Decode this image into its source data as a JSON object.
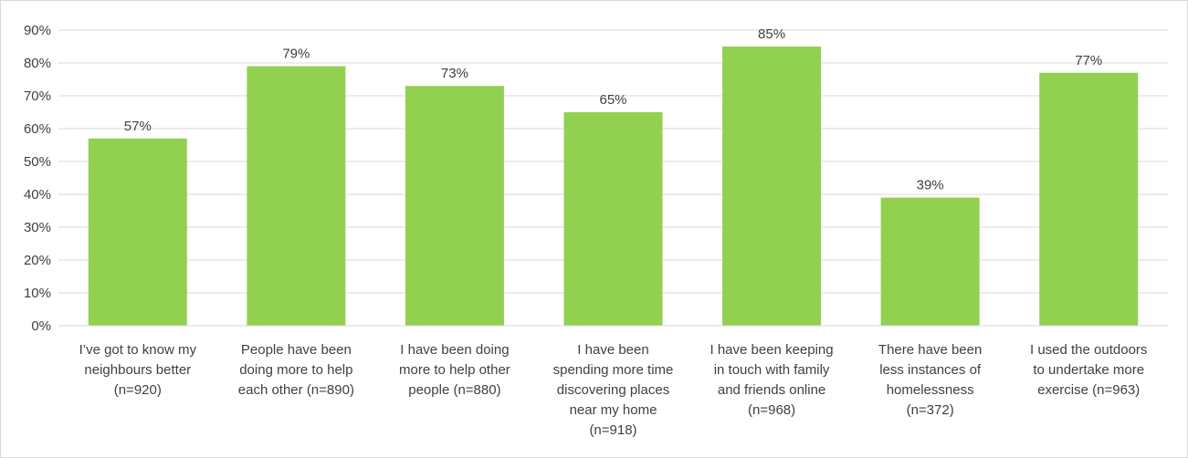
{
  "chart_data": {
    "type": "bar",
    "title": "",
    "xlabel": "",
    "ylabel": "",
    "ylim": [
      0,
      90
    ],
    "yticks": [
      "0%",
      "10%",
      "20%",
      "30%",
      "40%",
      "50%",
      "60%",
      "70%",
      "80%",
      "90%"
    ],
    "ytick_values": [
      0,
      10,
      20,
      30,
      40,
      50,
      60,
      70,
      80,
      90
    ],
    "grid": true,
    "legend": "none",
    "bar_color": "#92d050",
    "categories": [
      [
        "I’ve got to know my",
        "neighbours better",
        "(n=920)"
      ],
      [
        "People have been",
        "doing more to help",
        "each other (n=890)"
      ],
      [
        "I have been doing",
        "more to help other",
        "people (n=880)"
      ],
      [
        "I have been",
        "spending more time",
        "discovering places",
        "near my home",
        "(n=918)"
      ],
      [
        "I have been keeping",
        "in touch with family",
        "and friends online",
        "(n=968)"
      ],
      [
        "There have been",
        "less instances of",
        "homelessness",
        "(n=372)"
      ],
      [
        "I used the outdoors",
        "to undertake more",
        "exercise (n=963)"
      ]
    ],
    "values": [
      57,
      79,
      73,
      65,
      85,
      39,
      77
    ],
    "value_labels": [
      "57%",
      "79%",
      "73%",
      "65%",
      "85%",
      "39%",
      "77%"
    ]
  }
}
